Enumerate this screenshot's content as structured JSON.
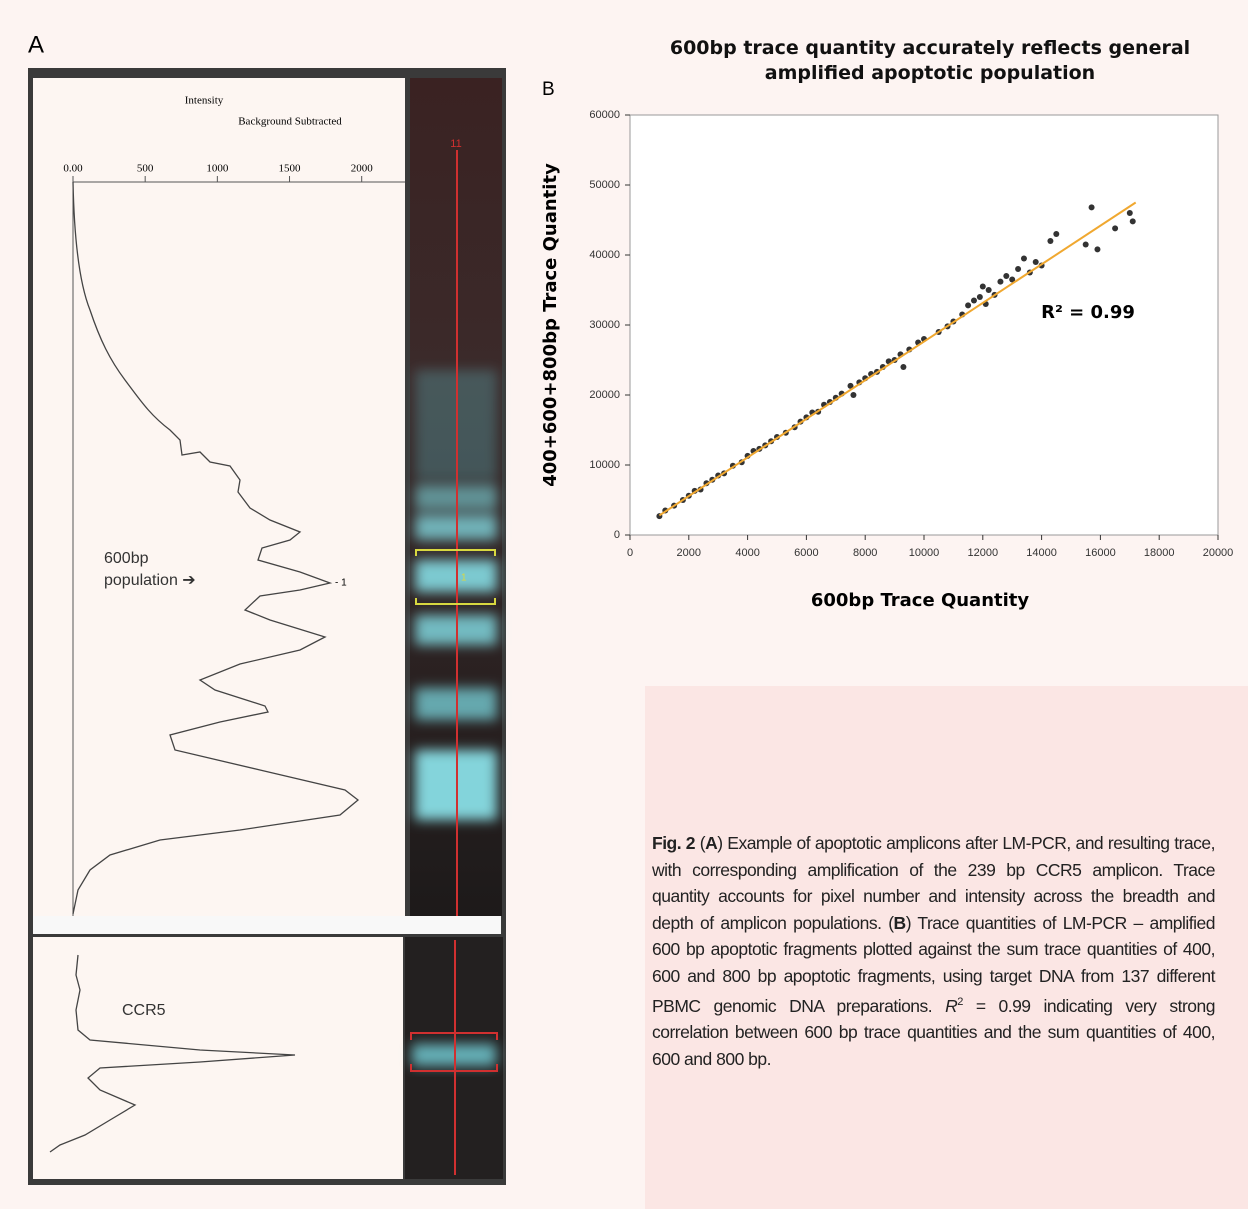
{
  "panel_a": {
    "label": "A",
    "axis_title_1": "Intensity",
    "axis_title_2": "Background Subtracted",
    "xlim": [
      0,
      2300
    ],
    "xticks": [
      {
        "value": 0,
        "label": "0.00"
      },
      500,
      1000,
      1500,
      2000
    ],
    "lane_label": "11",
    "band_label": "1",
    "peak_label": "- 1",
    "annotation": "600bp\npopulation ➔",
    "lower_label": "CCR5"
  },
  "chart_data": {
    "type": "scatter",
    "panel_label": "B",
    "title": "600bp trace quantity accurately reflects general amplified apoptotic population",
    "xlabel": "600bp Trace Quantity",
    "ylabel": "400+600+800bp Trace Quantity",
    "annotation": "R² = 0.99",
    "xlim": [
      0,
      20000
    ],
    "ylim": [
      0,
      60000
    ],
    "xticks": [
      0,
      2000,
      4000,
      6000,
      8000,
      10000,
      12000,
      14000,
      16000,
      18000,
      20000
    ],
    "yticks": [
      0,
      10000,
      20000,
      30000,
      40000,
      50000,
      60000
    ],
    "color": "#333333",
    "x": [
      1000,
      1200,
      1500,
      1800,
      2000,
      2200,
      2400,
      2600,
      2800,
      3000,
      3200,
      3500,
      3800,
      4000,
      4200,
      4400,
      4600,
      4800,
      5000,
      5300,
      5600,
      5800,
      6000,
      6200,
      6400,
      6600,
      6800,
      7000,
      7200,
      7500,
      7800,
      8000,
      8200,
      8400,
      8600,
      8800,
      9000,
      9200,
      9500,
      9800,
      10000,
      10500,
      10800,
      11000,
      11300,
      11500,
      11700,
      11900,
      12000,
      12200,
      12400,
      12600,
      12800,
      13000,
      13200,
      13400,
      13600,
      13800,
      14000,
      14300,
      14500,
      15500,
      15700,
      15900,
      16500,
      17000,
      17100,
      7600,
      9300,
      12100
    ],
    "values": [
      2700,
      3500,
      4200,
      5000,
      5600,
      6300,
      6500,
      7400,
      7900,
      8500,
      8800,
      9900,
      10400,
      11300,
      12000,
      12300,
      12800,
      13400,
      14000,
      14600,
      15400,
      16200,
      16800,
      17500,
      17600,
      18600,
      19000,
      19600,
      20200,
      21300,
      21800,
      22400,
      23000,
      23300,
      24000,
      24800,
      25000,
      25800,
      26500,
      27500,
      28000,
      29000,
      29800,
      30500,
      31500,
      32800,
      33500,
      34000,
      35500,
      35000,
      34300,
      36200,
      37000,
      36500,
      38000,
      39500,
      37500,
      39000,
      38500,
      42000,
      43000,
      41500,
      46800,
      40800,
      43800,
      46000,
      44800,
      20000,
      24000,
      33000
    ],
    "trendline": {
      "x": [
        1000,
        17200
      ],
      "values": [
        2800,
        47500
      ],
      "color": "#f0a830"
    }
  },
  "caption": [
    {
      "text": "Fig. 2",
      "style": "bold"
    },
    {
      "text": " (",
      "style": "normal"
    },
    {
      "text": "A",
      "style": "bold"
    },
    {
      "text": ") Example of apoptotic amplicons after LM-PCR, and resulting trace, with corresponding amplification of the 239 bp CCR5 amplicon. Trace quantity accounts for pixel number and intensity across the breadth and depth of amplicon populations. (",
      "style": "normal"
    },
    {
      "text": "B",
      "style": "bold"
    },
    {
      "text": ") Trace quantities of LM-PCR – amplified 600 bp apoptotic fragments plotted against the sum trace quantities of 400, 600 and 800 bp apoptotic fragments, using target DNA from 137 different PBMC genomic DNA preparations. ",
      "style": "normal"
    },
    {
      "text": "R",
      "style": "italic"
    },
    {
      "text": "2",
      "style": "sup"
    },
    {
      "text": " = 0.99 indicating very strong correlation between 600 bp trace quantities and the sum quantities of 400, 600 and 800 bp.",
      "style": "normal"
    }
  ]
}
